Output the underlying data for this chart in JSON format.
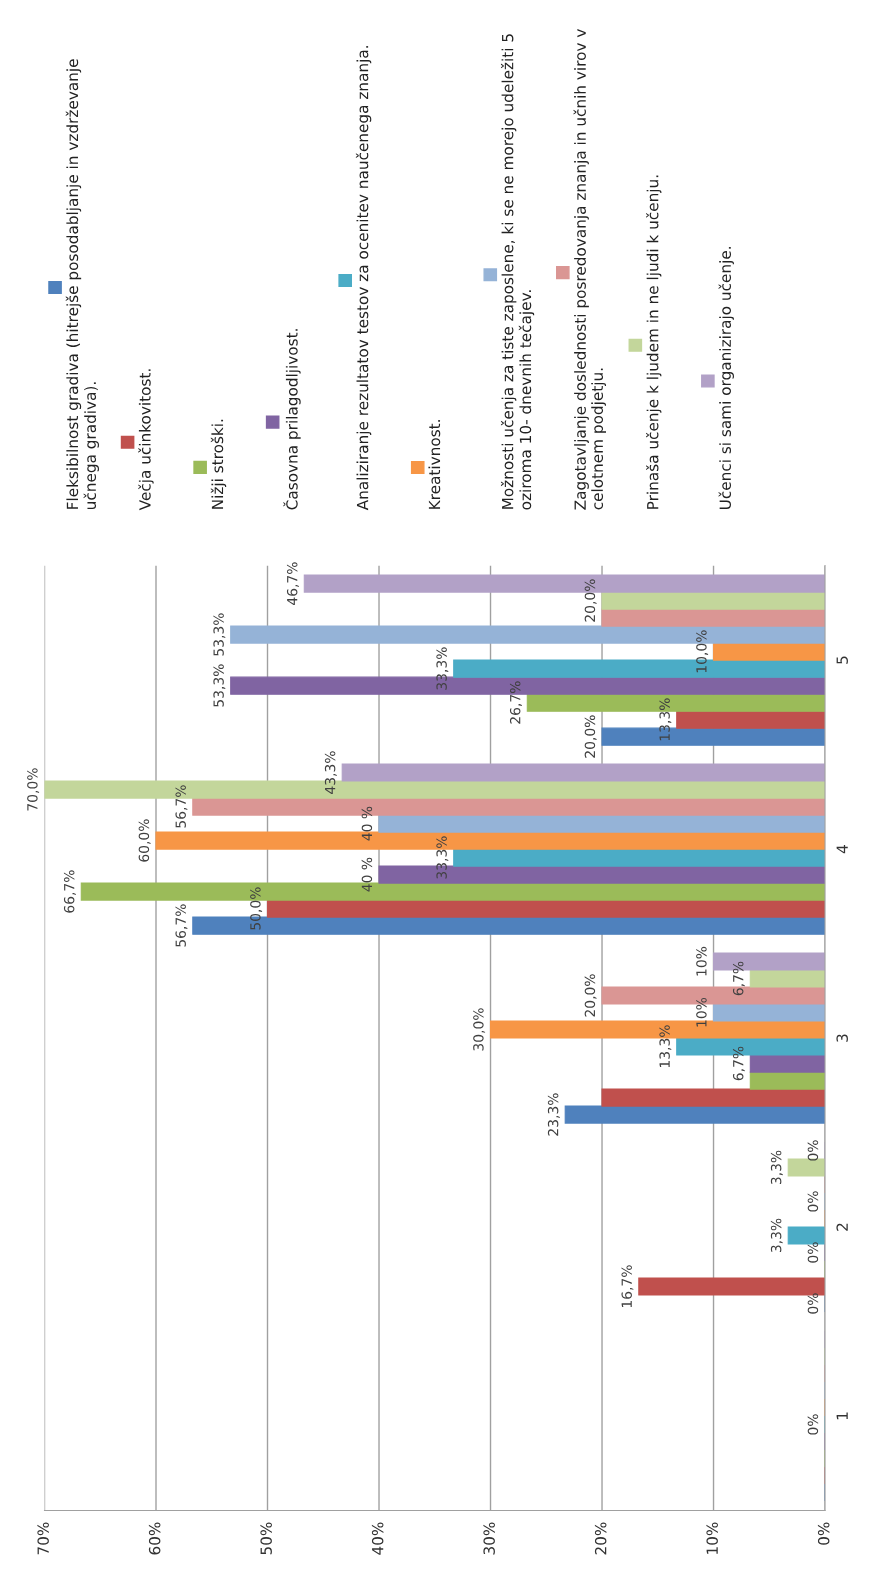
{
  "chart_data": {
    "type": "bar",
    "orientation": "horizontal",
    "categories": [
      "5",
      "4",
      "3",
      "2",
      "1"
    ],
    "xlim": [
      70,
      0
    ],
    "xticks": [
      {
        "value": 70,
        "label": "70%"
      },
      {
        "value": 60,
        "label": "60%"
      },
      {
        "value": 50,
        "label": "50%"
      },
      {
        "value": 40,
        "label": "40%"
      },
      {
        "value": 30,
        "label": "30%"
      },
      {
        "value": 20,
        "label": "20%"
      },
      {
        "value": 10,
        "label": "10%"
      },
      {
        "value": 0,
        "label": "0%"
      }
    ],
    "grid": "x",
    "legend": "top",
    "series": [
      {
        "name": "Fleksibilnost gradiva (hitrejše posodabljanje in vzdrževanje učnega gradiva).",
        "color": "#4f81bd",
        "values": [
          20.0,
          56.7,
          23.3,
          0,
          0
        ],
        "value_labels": [
          "20,0%",
          "56,7%",
          "23,3%",
          "0%",
          null
        ]
      },
      {
        "name": "Večja učinkovitost.",
        "color": "#c0504d",
        "values": [
          13.3,
          50.0,
          20.0,
          16.7,
          0
        ],
        "value_labels": [
          "13,3%",
          "50,0%",
          null,
          "16,7%",
          null
        ]
      },
      {
        "name": "Nižji stroški.",
        "color": "#9bbb59",
        "values": [
          26.7,
          66.7,
          6.7,
          0,
          0
        ],
        "value_labels": [
          "26,7%",
          "66,7%",
          null,
          null,
          null
        ]
      },
      {
        "name": "Časovna prilagodljivost.",
        "color": "#8064a2",
        "values": [
          53.3,
          40,
          6.7,
          0,
          0
        ],
        "value_labels": [
          "53,3%",
          "40 %",
          "6,7%",
          "0%",
          null
        ]
      },
      {
        "name": "Analiziranje rezultatov testov za ocenitev naučenega znanja.",
        "color": "#4bacc6",
        "values": [
          33.3,
          33.3,
          13.3,
          3.3,
          0
        ],
        "value_labels": [
          "33,3%",
          "33,3%",
          "13,3%",
          "3,3%",
          "0%"
        ]
      },
      {
        "name": "Kreativnost.",
        "color": "#f79646",
        "values": [
          10.0,
          60.0,
          30.0,
          0,
          0
        ],
        "value_labels": [
          "10,0%",
          "60,0%",
          "30,0%",
          null,
          null
        ]
      },
      {
        "name": "Možnosti učenja za tiste zaposlene, ki se ne morejo udeležiti 5 oziroma 10- dnevnih tečajev.",
        "color": "#95b3d7",
        "values": [
          53.3,
          40,
          10,
          0,
          0
        ],
        "value_labels": [
          "53,3%",
          "40 %",
          "10%",
          "0%",
          null
        ]
      },
      {
        "name": "Zagotavljanje doslednosti posredovanja znanja in učnih virov v celotnem podjetju.",
        "color": "#da9694",
        "values": [
          20.0,
          56.7,
          20.0,
          0,
          0
        ],
        "value_labels": [
          null,
          "56,7%",
          "20,0%",
          null,
          null
        ]
      },
      {
        "name": "Prinaša učenje k ljudem in ne ljudi k učenju.",
        "color": "#c3d69b",
        "values": [
          20.0,
          70.0,
          6.7,
          3.3,
          0
        ],
        "value_labels": [
          "20,0%",
          "70,0%",
          "6,7%",
          "3,3%",
          null
        ]
      },
      {
        "name": "Učenci si sami organizirajo učenje.",
        "color": "#b2a1c7",
        "values": [
          46.7,
          43.3,
          10,
          0,
          0
        ],
        "value_labels": [
          "46,7%",
          "43,3%",
          "10%",
          "0%",
          null
        ]
      }
    ]
  }
}
